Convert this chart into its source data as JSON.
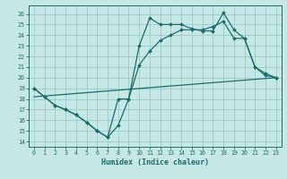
{
  "xlabel": "Humidex (Indice chaleur)",
  "xlim": [
    -0.5,
    23.5
  ],
  "ylim": [
    13.5,
    26.8
  ],
  "yticks": [
    14,
    15,
    16,
    17,
    18,
    19,
    20,
    21,
    22,
    23,
    24,
    25,
    26
  ],
  "xticks": [
    0,
    1,
    2,
    3,
    4,
    5,
    6,
    7,
    8,
    9,
    10,
    11,
    12,
    13,
    14,
    15,
    16,
    17,
    18,
    19,
    20,
    21,
    22,
    23
  ],
  "background_color": "#c5e8e5",
  "grid_color": "#9ecece",
  "line_color": "#1e6b6b",
  "line1_x": [
    0,
    1,
    2,
    3,
    4,
    5,
    6,
    7,
    8,
    9,
    10,
    11,
    12,
    13,
    14,
    15,
    16,
    17,
    18,
    19,
    20,
    21,
    22,
    23
  ],
  "line1_y": [
    19.0,
    18.2,
    17.4,
    17.0,
    16.5,
    15.8,
    15.0,
    14.4,
    18.0,
    18.0,
    23.0,
    25.6,
    25.0,
    25.0,
    25.0,
    24.6,
    24.4,
    24.4,
    26.1,
    24.5,
    23.7,
    21.0,
    20.4,
    20.0
  ],
  "line2_x": [
    0,
    1,
    2,
    3,
    4,
    5,
    6,
    7,
    8,
    9,
    10,
    11,
    12,
    13,
    14,
    15,
    16,
    17,
    18,
    19,
    20,
    21,
    22,
    23
  ],
  "line2_y": [
    19.0,
    18.2,
    17.4,
    17.0,
    16.5,
    15.8,
    15.0,
    14.4,
    15.5,
    18.0,
    21.2,
    22.5,
    23.5,
    24.0,
    24.5,
    24.5,
    24.5,
    24.8,
    25.3,
    23.7,
    23.7,
    21.0,
    20.2,
    20.0
  ],
  "line3_x": [
    0,
    23
  ],
  "line3_y": [
    18.2,
    20.0
  ]
}
